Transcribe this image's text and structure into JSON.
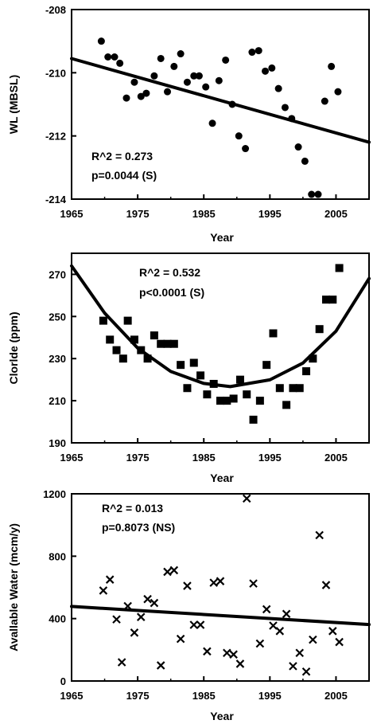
{
  "chart_data": [
    {
      "type": "scatter",
      "marker": "circle",
      "xlabel": "Year",
      "ylabel": "WL (MBSL)",
      "xlim": [
        1965,
        2010
      ],
      "ylim": [
        -214,
        -208
      ],
      "xticks": [
        "1965",
        "1975",
        "1985",
        "1995",
        "2005"
      ],
      "yticks": [
        "-208",
        "-210",
        "-212",
        "-214"
      ],
      "annotations": [
        "R^2 = 0.273",
        "p=0.0044 (S)"
      ],
      "series": [
        {
          "x": [
            1969.5,
            1970.5,
            1971.5,
            1972.3,
            1973.3,
            1974.5,
            1975.5,
            1976.3,
            1977.5,
            1978.5,
            1979.5,
            1980.5,
            1981.5,
            1982.5,
            1983.5,
            1984.3,
            1985.3,
            1986.3,
            1987.3,
            1988.3,
            1989.3,
            1990.3,
            1991.3,
            1992.3,
            1993.3,
            1994.3,
            1995.3,
            1996.3,
            1997.3,
            1998.3,
            1999.3,
            2000.3,
            2001.3,
            2002.3,
            2003.3,
            2004.3,
            2005.3
          ],
          "y": [
            -209.0,
            -209.5,
            -209.5,
            -209.7,
            -210.8,
            -210.3,
            -210.75,
            -210.65,
            -210.1,
            -209.55,
            -210.6,
            -209.8,
            -209.4,
            -210.3,
            -210.1,
            -210.1,
            -210.45,
            -211.6,
            -210.25,
            -209.6,
            -211.0,
            -212.0,
            -212.4,
            -209.35,
            -209.3,
            -209.95,
            -209.85,
            -210.5,
            -211.1,
            -211.45,
            -212.35,
            -212.8,
            -213.85,
            -213.85,
            -210.9,
            -209.8,
            -210.6
          ]
        }
      ],
      "trend": {
        "type": "linear",
        "x": [
          1965,
          2010
        ],
        "y": [
          -209.55,
          -212.2
        ]
      }
    },
    {
      "type": "scatter",
      "marker": "square",
      "xlabel": "Year",
      "ylabel": "Clorlde (ppm)",
      "xlim": [
        1965,
        2010
      ],
      "ylim": [
        190,
        280
      ],
      "xticks": [
        "1965",
        "1975",
        "1985",
        "1995",
        "2005"
      ],
      "yticks": [
        "190",
        "210",
        "230",
        "250",
        "270"
      ],
      "annotations": [
        "R^2 = 0.532",
        "p<0.0001 (S)"
      ],
      "series": [
        {
          "x": [
            1969.8,
            1970.8,
            1971.8,
            1972.8,
            1973.5,
            1974.5,
            1975.5,
            1976.5,
            1977.5,
            1978.5,
            1979.5,
            1980.5,
            1981.5,
            1982.5,
            1983.5,
            1984.5,
            1985.5,
            1986.5,
            1987.5,
            1988.5,
            1989.5,
            1990.5,
            1991.5,
            1992.5,
            1993.5,
            1994.5,
            1995.5,
            1996.5,
            1997.5,
            1998.5,
            1999.5,
            2000.5,
            2001.5,
            2002.5,
            2003.5,
            2004.5,
            2005.5
          ],
          "y": [
            248,
            239,
            234,
            230,
            248,
            239,
            234,
            230,
            241,
            237,
            237,
            237,
            227,
            216,
            228,
            222,
            213,
            218,
            210,
            210,
            211,
            220,
            213,
            201,
            210,
            227,
            242,
            216,
            208,
            216,
            216,
            224,
            230,
            244,
            258,
            258,
            273
          ]
        }
      ],
      "trend": {
        "type": "quadratic",
        "x": [
          1965,
          1970,
          1975,
          1980,
          1985,
          1989,
          1995,
          2000,
          2005,
          2010
        ],
        "y": [
          274,
          251.6,
          235.0,
          223.9,
          218.2,
          216.7,
          219.9,
          227.9,
          243.0,
          268
        ]
      }
    },
    {
      "type": "scatter",
      "marker": "x",
      "xlabel": "Year",
      "ylabel": "Avallable Water (mcm/y)",
      "xlim": [
        1965,
        2010
      ],
      "ylim": [
        0,
        1200
      ],
      "xticks": [
        "1965",
        "1975",
        "1985",
        "1995",
        "2005"
      ],
      "yticks": [
        "0",
        "400",
        "800",
        "1200"
      ],
      "annotations": [
        "R^2 = 0.013",
        "p=0.8073 (NS)"
      ],
      "series": [
        {
          "x": [
            1969.8,
            1970.8,
            1971.8,
            1972.6,
            1973.5,
            1974.5,
            1975.5,
            1976.5,
            1977.5,
            1978.5,
            1979.5,
            1980.5,
            1981.5,
            1982.5,
            1983.5,
            1984.5,
            1985.5,
            1986.5,
            1987.5,
            1988.5,
            1989.5,
            1990.5,
            1991.5,
            1992.5,
            1993.5,
            1994.5,
            1995.5,
            1996.5,
            1997.5,
            1998.5,
            1999.5,
            2000.5,
            2001.5,
            2002.5,
            2003.5,
            2004.5,
            2005.5
          ],
          "y": [
            580,
            650,
            395,
            120,
            480,
            310,
            410,
            525,
            500,
            100,
            700,
            710,
            270,
            610,
            360,
            360,
            190,
            630,
            640,
            180,
            170,
            110,
            1170,
            625,
            240,
            460,
            355,
            320,
            430,
            95,
            180,
            60,
            265,
            935,
            615,
            320,
            250
          ]
        }
      ],
      "trend": {
        "type": "linear",
        "x": [
          1965,
          2010
        ],
        "y": [
          478,
          362
        ]
      }
    }
  ]
}
